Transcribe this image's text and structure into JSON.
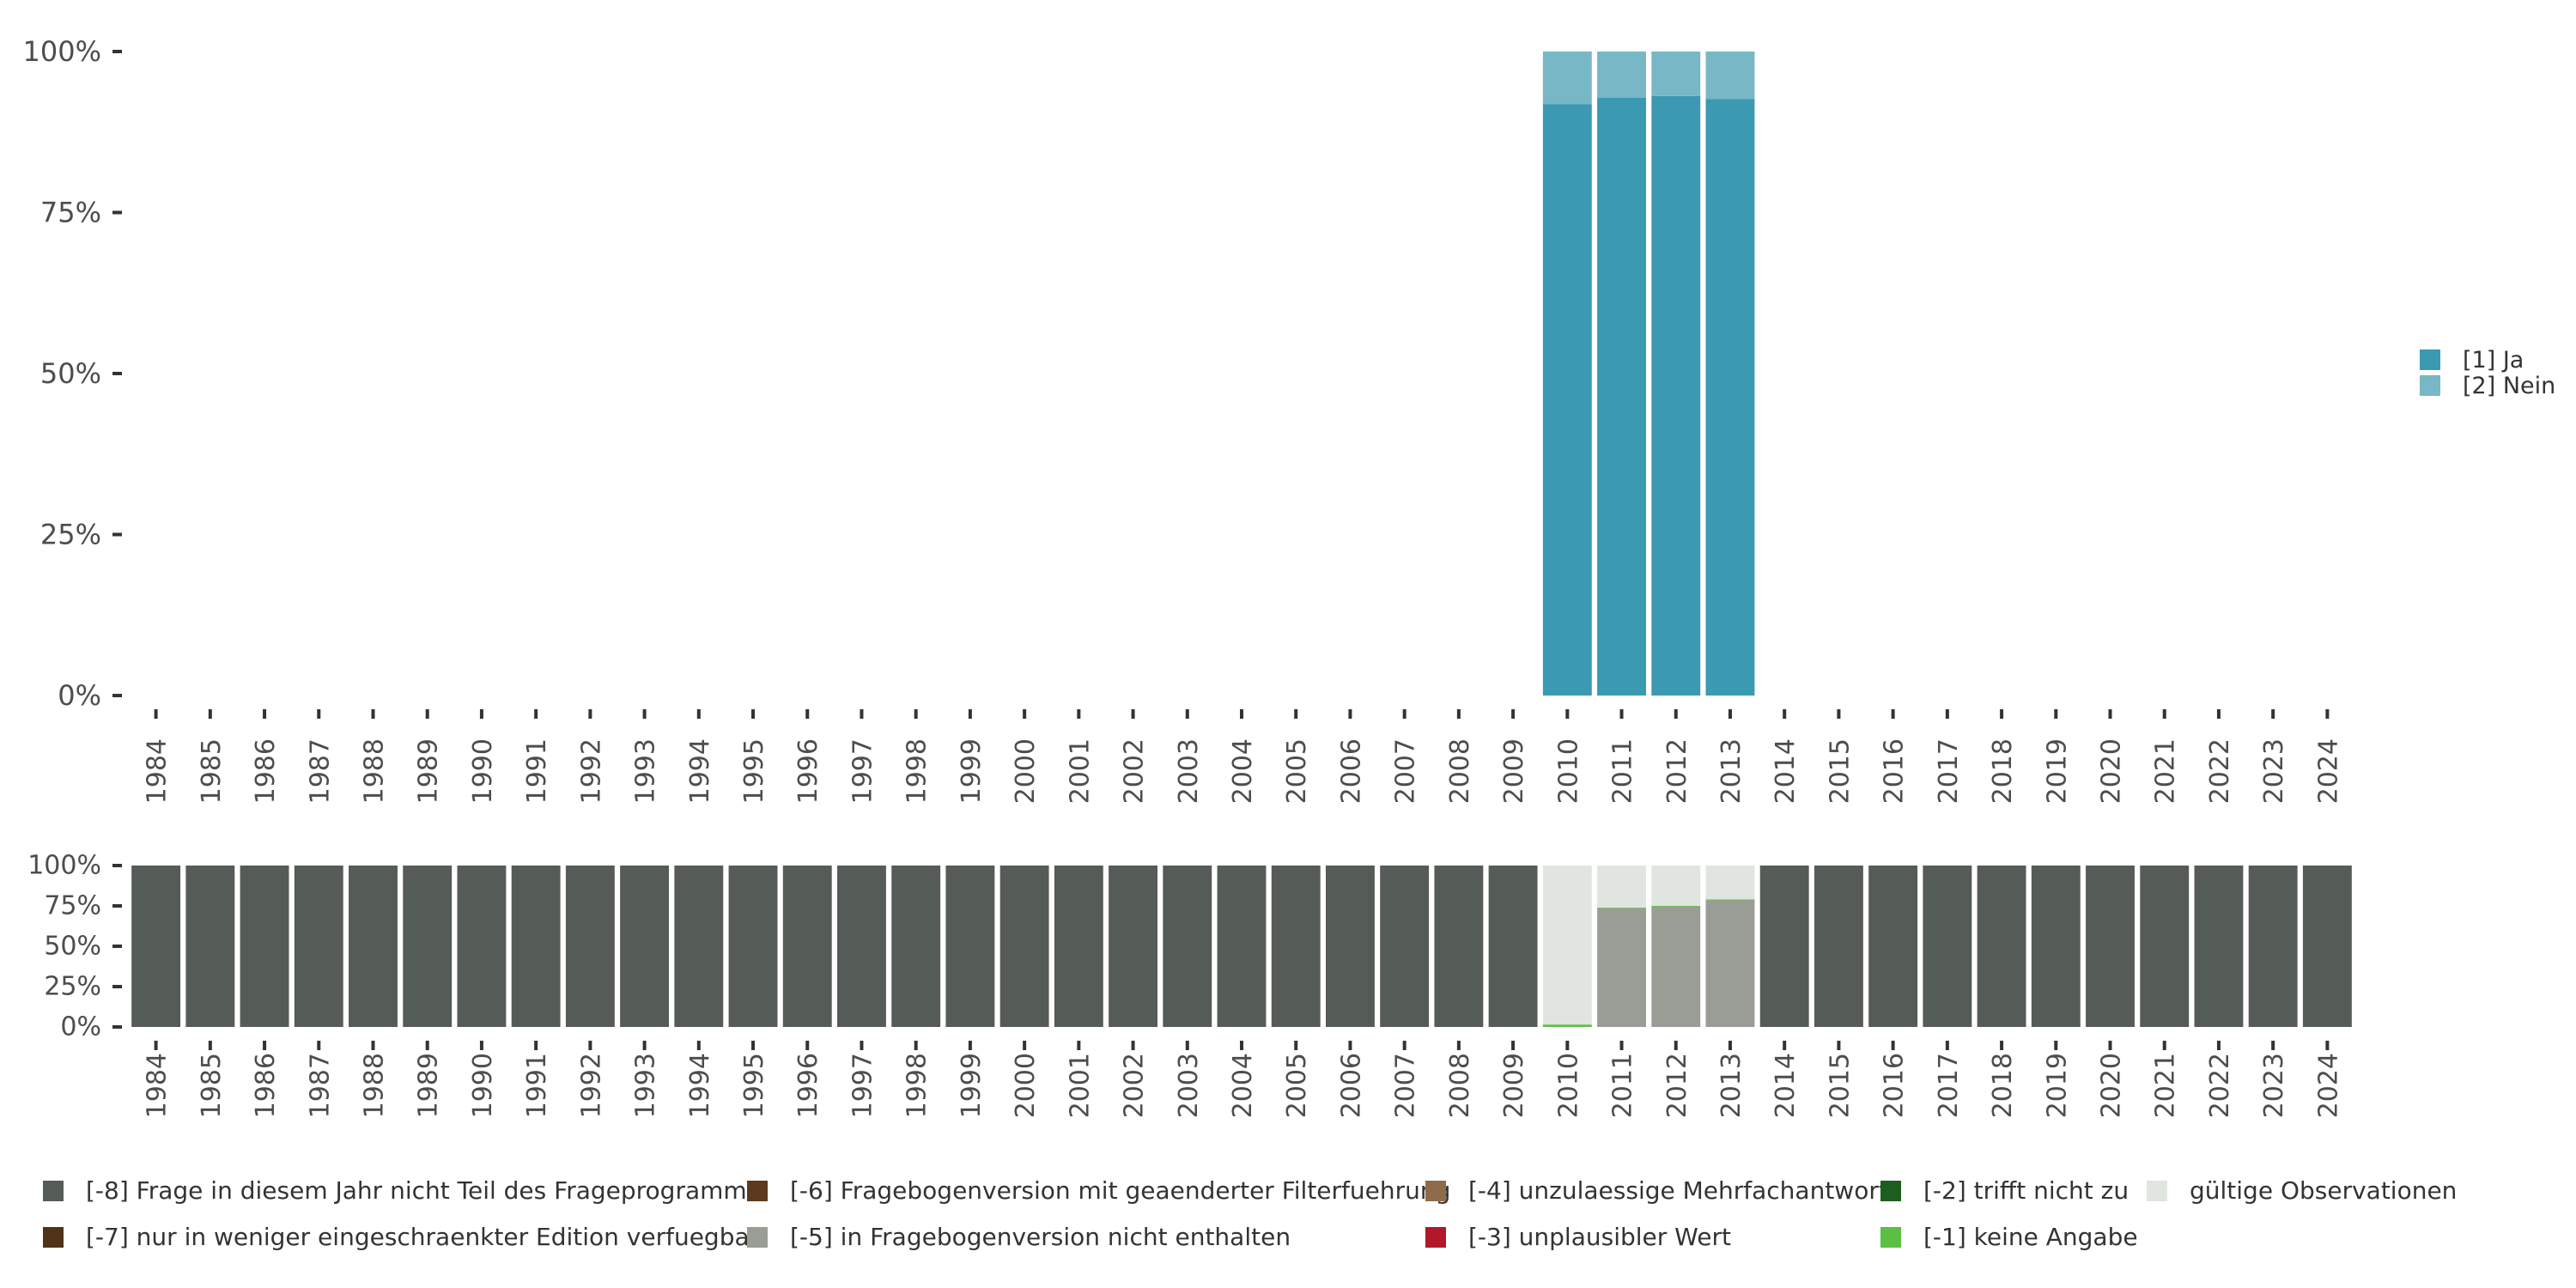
{
  "chart_data": [
    {
      "type": "bar",
      "stacked": true,
      "title": "",
      "xlabel": "",
      "ylabel": "",
      "ylim": [
        0,
        100
      ],
      "y_ticks": [
        "0%",
        "25%",
        "50%",
        "75%",
        "100%"
      ],
      "categories": [
        "1984",
        "1985",
        "1986",
        "1987",
        "1988",
        "1989",
        "1990",
        "1991",
        "1992",
        "1993",
        "1994",
        "1995",
        "1996",
        "1997",
        "1998",
        "1999",
        "2000",
        "2001",
        "2002",
        "2003",
        "2004",
        "2005",
        "2006",
        "2007",
        "2008",
        "2009",
        "2010",
        "2011",
        "2012",
        "2013",
        "2014",
        "2015",
        "2016",
        "2017",
        "2018",
        "2019",
        "2020",
        "2021",
        "2022",
        "2023",
        "2024"
      ],
      "legend_position": "right",
      "series": [
        {
          "name": "[1] Ja",
          "color": "#3b99b2",
          "values": [
            null,
            null,
            null,
            null,
            null,
            null,
            null,
            null,
            null,
            null,
            null,
            null,
            null,
            null,
            null,
            null,
            null,
            null,
            null,
            null,
            null,
            null,
            null,
            null,
            null,
            null,
            91.8,
            92.8,
            93.1,
            92.6,
            null,
            null,
            null,
            null,
            null,
            null,
            null,
            null,
            null,
            null,
            null
          ]
        },
        {
          "name": "[2] Nein",
          "color": "#78b7c5",
          "values": [
            null,
            null,
            null,
            null,
            null,
            null,
            null,
            null,
            null,
            null,
            null,
            null,
            null,
            null,
            null,
            null,
            null,
            null,
            null,
            null,
            null,
            null,
            null,
            null,
            null,
            null,
            8.2,
            7.2,
            6.9,
            7.4,
            null,
            null,
            null,
            null,
            null,
            null,
            null,
            null,
            null,
            null,
            null
          ]
        }
      ]
    },
    {
      "type": "bar",
      "stacked": true,
      "title": "",
      "xlabel": "",
      "ylabel": "",
      "ylim": [
        0,
        100
      ],
      "y_ticks": [
        "0%",
        "25%",
        "50%",
        "75%",
        "100%"
      ],
      "categories": [
        "1984",
        "1985",
        "1986",
        "1987",
        "1988",
        "1989",
        "1990",
        "1991",
        "1992",
        "1993",
        "1994",
        "1995",
        "1996",
        "1997",
        "1998",
        "1999",
        "2000",
        "2001",
        "2002",
        "2003",
        "2004",
        "2005",
        "2006",
        "2007",
        "2008",
        "2009",
        "2010",
        "2011",
        "2012",
        "2013",
        "2014",
        "2015",
        "2016",
        "2017",
        "2018",
        "2019",
        "2020",
        "2021",
        "2022",
        "2023",
        "2024"
      ],
      "legend_position": "bottom",
      "series": [
        {
          "name": "[-8] Frage in diesem Jahr nicht Teil des Frageprogramms",
          "color": "#555b56",
          "values": [
            100,
            100,
            100,
            100,
            100,
            100,
            100,
            100,
            100,
            100,
            100,
            100,
            100,
            100,
            100,
            100,
            100,
            100,
            100,
            100,
            100,
            100,
            100,
            100,
            100,
            100,
            0,
            0,
            0,
            0,
            100,
            100,
            100,
            100,
            100,
            100,
            100,
            100,
            100,
            100,
            100
          ]
        },
        {
          "name": "[-7] nur in weniger eingeschraenkter Edition verfuegbar",
          "color": "#4f3218",
          "values": [
            0,
            0,
            0,
            0,
            0,
            0,
            0,
            0,
            0,
            0,
            0,
            0,
            0,
            0,
            0,
            0,
            0,
            0,
            0,
            0,
            0,
            0,
            0,
            0,
            0,
            0,
            0,
            0,
            0,
            0,
            0,
            0,
            0,
            0,
            0,
            0,
            0,
            0,
            0,
            0,
            0
          ]
        },
        {
          "name": "[-6] Fragebogenversion mit geaenderter Filterfuehrung",
          "color": "#5b3a1e",
          "values": [
            0,
            0,
            0,
            0,
            0,
            0,
            0,
            0,
            0,
            0,
            0,
            0,
            0,
            0,
            0,
            0,
            0,
            0,
            0,
            0,
            0,
            0,
            0,
            0,
            0,
            0,
            0,
            0,
            0,
            0,
            0,
            0,
            0,
            0,
            0,
            0,
            0,
            0,
            0,
            0,
            0
          ]
        },
        {
          "name": "[-5] in Fragebogenversion nicht enthalten",
          "color": "#999d96",
          "values": [
            0,
            0,
            0,
            0,
            0,
            0,
            0,
            0,
            0,
            0,
            0,
            0,
            0,
            0,
            0,
            0,
            0,
            0,
            0,
            0,
            0,
            0,
            0,
            0,
            0,
            0,
            0,
            73.5,
            74.5,
            78.5,
            0,
            0,
            0,
            0,
            0,
            0,
            0,
            0,
            0,
            0,
            0
          ]
        },
        {
          "name": "[-4] unzulaessige Mehrfachantwort",
          "color": "#8f6b4c",
          "values": [
            0,
            0,
            0,
            0,
            0,
            0,
            0,
            0,
            0,
            0,
            0,
            0,
            0,
            0,
            0,
            0,
            0,
            0,
            0,
            0,
            0,
            0,
            0,
            0,
            0,
            0,
            0,
            0,
            0,
            0,
            0,
            0,
            0,
            0,
            0,
            0,
            0,
            0,
            0,
            0,
            0
          ]
        },
        {
          "name": "[-3] unplausibler Wert",
          "color": "#b2182b",
          "values": [
            0,
            0,
            0,
            0,
            0,
            0,
            0,
            0,
            0,
            0,
            0,
            0,
            0,
            0,
            0,
            0,
            0,
            0,
            0,
            0,
            0,
            0,
            0,
            0,
            0,
            0,
            0,
            0,
            0,
            0,
            0,
            0,
            0,
            0,
            0,
            0,
            0,
            0,
            0,
            0,
            0
          ]
        },
        {
          "name": "[-2] trifft nicht zu",
          "color": "#1b5e20",
          "values": [
            0,
            0,
            0,
            0,
            0,
            0,
            0,
            0,
            0,
            0,
            0,
            0,
            0,
            0,
            0,
            0,
            0,
            0,
            0,
            0,
            0,
            0,
            0,
            0,
            0,
            0,
            0,
            0,
            0,
            0,
            0,
            0,
            0,
            0,
            0,
            0,
            0,
            0,
            0,
            0,
            0
          ]
        },
        {
          "name": "[-1] keine Angabe",
          "color": "#5cbf45",
          "values": [
            0,
            0,
            0,
            0,
            0,
            0,
            0,
            0,
            0,
            0,
            0,
            0,
            0,
            0,
            0,
            0,
            0,
            0,
            0,
            0,
            0,
            0,
            0,
            0,
            0,
            0,
            1.5,
            0.5,
            0.5,
            0.5,
            0,
            0,
            0,
            0,
            0,
            0,
            0,
            0,
            0,
            0,
            0
          ]
        },
        {
          "name": "gültige Observationen",
          "color": "#e1e5e0",
          "values": [
            0,
            0,
            0,
            0,
            0,
            0,
            0,
            0,
            0,
            0,
            0,
            0,
            0,
            0,
            0,
            0,
            0,
            0,
            0,
            0,
            0,
            0,
            0,
            0,
            0,
            0,
            98.5,
            26,
            25,
            21,
            0,
            0,
            0,
            0,
            0,
            0,
            0,
            0,
            0,
            0,
            0
          ]
        }
      ]
    }
  ]
}
